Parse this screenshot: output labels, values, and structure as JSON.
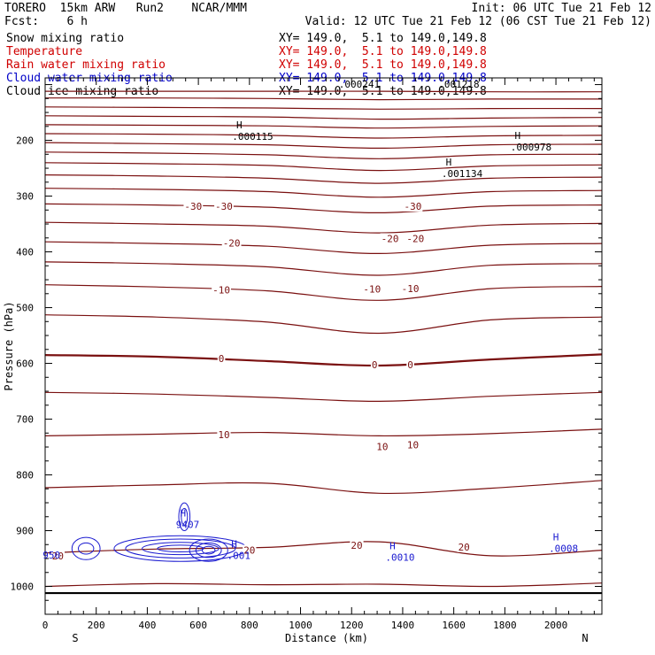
{
  "header": {
    "title_left": "TORERO  15km ARW   Run2    NCAR/MMM",
    "init": "Init: 06 UTC Tue 21 Feb 12",
    "fcst": "Fcst:    6 h",
    "valid": "Valid: 12 UTC Tue 21 Feb 12 (06 CST Tue 21 Feb 12)"
  },
  "legend": [
    {
      "name": "Snow mixing ratio",
      "range": "XY= 149.0,  5.1 to 149.0,149.8",
      "color": "#000000"
    },
    {
      "name": "Temperature",
      "range": "XY= 149.0,  5.1 to 149.0,149.8",
      "color": "#d00000"
    },
    {
      "name": "Rain water mixing ratio",
      "range": "XY= 149.0,  5.1 to 149.0,149.8",
      "color": "#d00000"
    },
    {
      "name": "Cloud water mixing ratio",
      "range": "XY= 149.0,  5.1 to 149.0,149.8",
      "color": "#0000c8"
    },
    {
      "name": "Cloud ice mixing ratio",
      "range": "XY= 149.0,  5.1 to 149.0,149.8",
      "color": "#000000"
    }
  ],
  "colors": {
    "temperature": "#7a1010",
    "cloud_water": "#1a1ad0",
    "frame": "#000000"
  },
  "chart_data": {
    "type": "contour",
    "xlabel": "Distance (km)",
    "ylabel": "Pressure (hPa)",
    "xlim": [
      0,
      2180
    ],
    "ylim": [
      1050,
      88
    ],
    "x_ticks": [
      0,
      200,
      400,
      600,
      800,
      1000,
      1200,
      1400,
      1600,
      1800,
      2000
    ],
    "y_ticks": [
      200,
      300,
      400,
      500,
      600,
      700,
      800,
      900,
      1000
    ],
    "end_labels": {
      "left": "S",
      "right": "N"
    },
    "temperature_isotherms": [
      {
        "p": [
          112,
          112,
          112,
          112,
          113,
          113
        ]
      },
      {
        "p": [
          124,
          124,
          125,
          127,
          126,
          126
        ]
      },
      {
        "p": [
          140,
          141,
          142,
          144,
          143,
          143
        ]
      },
      {
        "p": [
          156,
          157,
          158,
          162,
          160,
          159
        ]
      },
      {
        "p": [
          172,
          173,
          174,
          178,
          175,
          174
        ]
      },
      {
        "p": [
          188,
          189,
          191,
          196,
          192,
          191
        ]
      },
      {
        "p": [
          204,
          206,
          208,
          214,
          208,
          207
        ]
      },
      {
        "p": [
          221,
          223,
          226,
          233,
          226,
          225
        ]
      },
      {
        "p": [
          240,
          242,
          245,
          254,
          246,
          244
        ]
      },
      {
        "p": [
          262,
          264,
          268,
          277,
          268,
          266
        ]
      },
      {
        "p": [
          286,
          288,
          292,
          302,
          292,
          290
        ]
      },
      {
        "p": [
          314,
          316,
          320,
          330,
          318,
          316
        ]
      },
      {
        "p": [
          347,
          350,
          354,
          366,
          352,
          349
        ]
      },
      {
        "p": [
          382,
          385,
          390,
          403,
          388,
          385
        ]
      },
      {
        "p": [
          418,
          421,
          427,
          442,
          424,
          421
        ]
      },
      {
        "p": [
          459,
          463,
          470,
          487,
          466,
          462
        ]
      },
      {
        "p": [
          513,
          517,
          526,
          546,
          522,
          517
        ]
      },
      {
        "p": [
          585,
          588,
          596,
          604,
          593,
          584
        ],
        "bold": true
      },
      {
        "p": [
          652,
          655,
          661,
          668,
          659,
          652
        ]
      },
      {
        "p": [
          730,
          727,
          724,
          730,
          726,
          718
        ]
      },
      {
        "p": [
          823,
          818,
          815,
          833,
          824,
          810
        ]
      },
      {
        "p": [
          940,
          933,
          930,
          920,
          945,
          935
        ]
      },
      {
        "p": [
          1000,
          995,
          997,
          996,
          1000,
          994
        ]
      }
    ],
    "temperature_labels": [
      {
        "text": "-30",
        "x": 580,
        "p": 318
      },
      {
        "text": "-30",
        "x": 700,
        "p": 318
      },
      {
        "text": "-30",
        "x": 1440,
        "p": 318
      },
      {
        "text": "-20",
        "x": 730,
        "p": 384
      },
      {
        "text": "-20",
        "x": 1350,
        "p": 376
      },
      {
        "text": "-20",
        "x": 1450,
        "p": 376
      },
      {
        "text": "-10",
        "x": 690,
        "p": 468
      },
      {
        "text": "-10",
        "x": 1280,
        "p": 467
      },
      {
        "text": "-10",
        "x": 1430,
        "p": 466
      },
      {
        "text": "0",
        "x": 690,
        "p": 591
      },
      {
        "text": "0",
        "x": 1290,
        "p": 602
      },
      {
        "text": "0",
        "x": 1430,
        "p": 602
      },
      {
        "text": "10",
        "x": 700,
        "p": 728
      },
      {
        "text": "10",
        "x": 1320,
        "p": 749
      },
      {
        "text": "10",
        "x": 1440,
        "p": 746
      },
      {
        "text": "20",
        "x": 800,
        "p": 935
      },
      {
        "text": "20",
        "x": 1220,
        "p": 926
      },
      {
        "text": "20",
        "x": 1640,
        "p": 929
      },
      {
        "text": "20",
        "x": 50,
        "p": 945
      }
    ],
    "extrema_labels": [
      {
        "mark": "H",
        "value": ".000115",
        "x": 760,
        "p": 188
      },
      {
        "mark": "H",
        "value": ".000978",
        "x": 1850,
        "p": 207
      },
      {
        "mark": "H",
        "value": ".001134",
        "x": 1580,
        "p": 255
      },
      {
        "mark": "H",
        "value": "9407",
        "x": 540,
        "p": 884
      },
      {
        "mark": "H",
        "value": ".001",
        "x": 740,
        "p": 940
      },
      {
        "mark": "H",
        "value": ".0010",
        "x": 1360,
        "p": 943
      },
      {
        "mark": "H",
        "value": ".0008",
        "x": 2000,
        "p": 927
      }
    ],
    "misc_labels": [
      {
        "text": ".000241",
        "x": 1230,
        "p": 99
      },
      {
        "text": ".001218",
        "x": 1620,
        "p": 99
      },
      {
        "text": "950",
        "x": 25,
        "p": 944
      }
    ],
    "cloud_water_centers": [
      {
        "x": 530,
        "p": 932,
        "rx_km": [
          90,
          150,
          215,
          260
        ],
        "rp": [
          6,
          11,
          17,
          23
        ]
      },
      {
        "x": 640,
        "p": 935,
        "rx_km": [
          25,
          50,
          75
        ],
        "rp": [
          7,
          13,
          20
        ]
      },
      {
        "x": 545,
        "p": 875,
        "rx_km": [
          12,
          22
        ],
        "rp": [
          15,
          25
        ]
      },
      {
        "x": 160,
        "p": 932,
        "rx_km": [
          30,
          55
        ],
        "rp": [
          10,
          20
        ]
      }
    ]
  }
}
